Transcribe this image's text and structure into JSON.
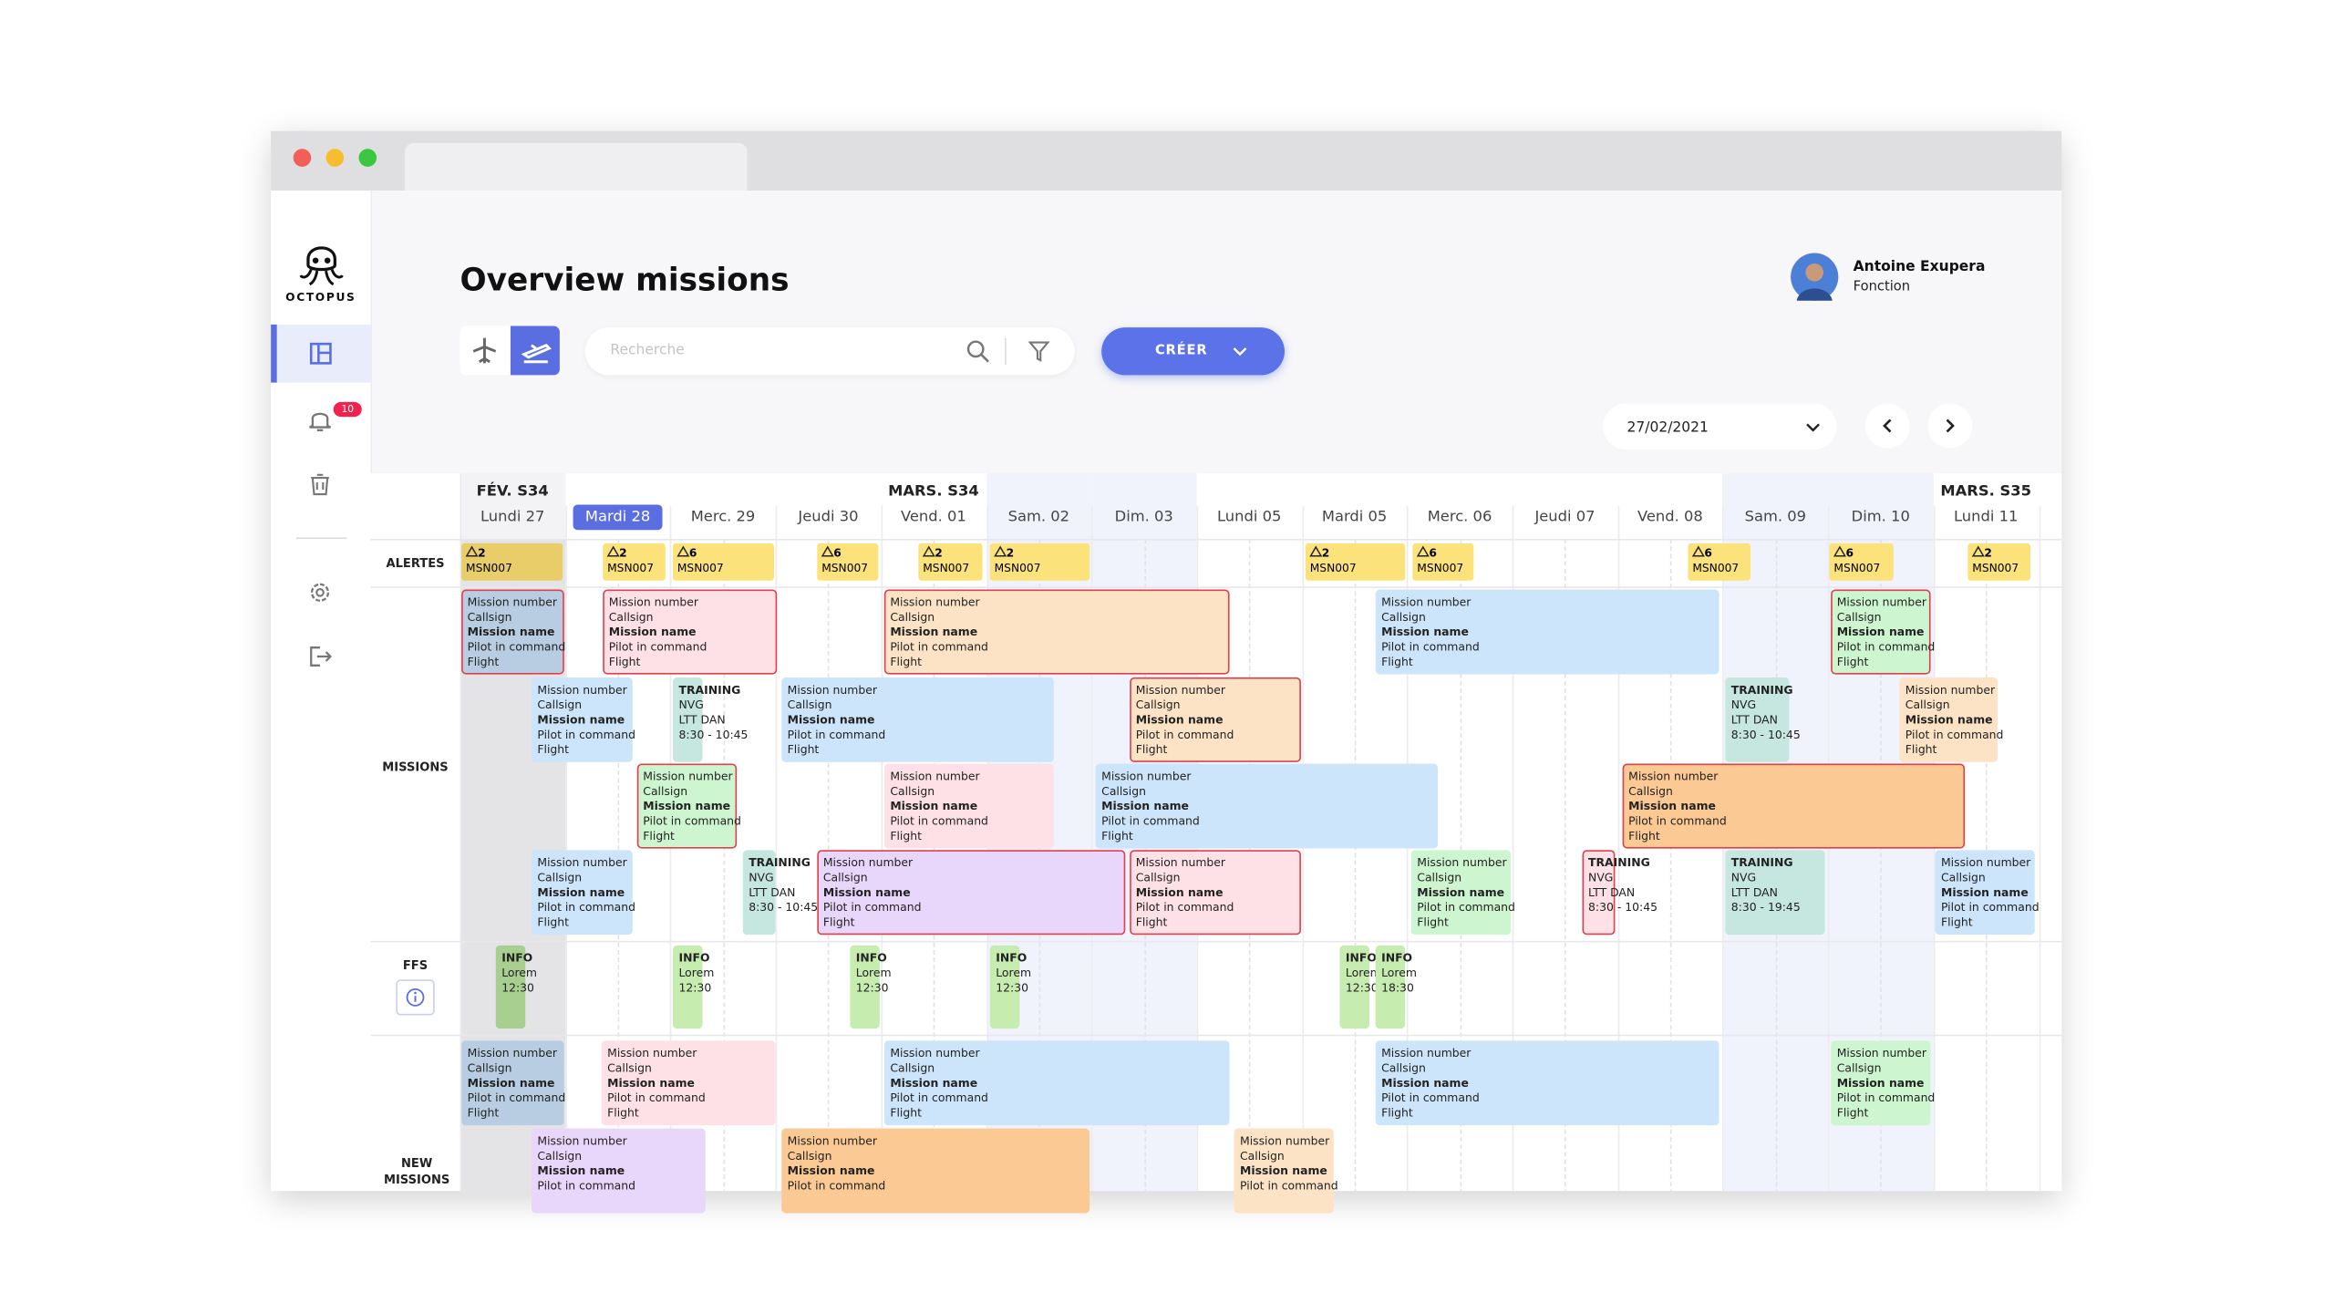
{
  "sidebar": {
    "logo": "OCTOPUS",
    "badge": 10
  },
  "header": {
    "title": "Overview missions",
    "search_placeholder": "Recherche",
    "create_button": "CRÉER",
    "user_name": "Antoine Exupera",
    "user_role": "Fonction",
    "date": "27/02/2021"
  },
  "timeline": {
    "weeks": [
      "FÉV. S34",
      "MARS. S34",
      "MARS. S35"
    ],
    "days": [
      "Lundi 27",
      "Mardi 28",
      "Merc. 29",
      "Jeudi 30",
      "Vend. 01",
      "Sam. 02",
      "Dim. 03",
      "Lundi 05",
      "Mardi 05",
      "Merc. 06",
      "Jeudi 07",
      "Vend. 08",
      "Sam. 09",
      "Dim. 10",
      "Lundi 11"
    ],
    "row_labels": {
      "alerts": "ALERTES",
      "missions": "MISSIONS",
      "ffs": "FFS",
      "new_missions": "NEW MISSIONS"
    },
    "alerts": [
      {
        "count": 2,
        "code": "MSN007"
      },
      {
        "count": 2,
        "code": "MSN007"
      },
      {
        "count": 6,
        "code": "MSN007"
      },
      {
        "count": 6,
        "code": "MSN007"
      },
      {
        "count": 2,
        "code": "MSN007"
      },
      {
        "count": 2,
        "code": "MSN007"
      },
      {
        "count": 2,
        "code": "MSN007"
      },
      {
        "count": 6,
        "code": "MSN007"
      },
      {
        "count": 6,
        "code": "MSN007"
      },
      {
        "count": 6,
        "code": "MSN007"
      },
      {
        "count": 2,
        "code": "MSN007"
      }
    ],
    "missions": [
      [
        "Mission number",
        "Callsign",
        "Mission name",
        "Pilot in command",
        "Flight"
      ],
      [
        "Mission number",
        "Callsign",
        "Mission name",
        "Pilot in command",
        "Flight"
      ],
      [
        "Mission number",
        "Callsign",
        "Mission name",
        "Pilot in command",
        "Flight"
      ],
      [
        "Mission number",
        "Callsign",
        "Mission name",
        "Pilot in command",
        "Flight"
      ],
      [
        "Mission number",
        "Callsign",
        "Mission name",
        "Pilot in command",
        "Flight"
      ],
      [
        "Mission number",
        "Callsign",
        "Mission name",
        "Pilot in command",
        "Flight"
      ],
      [
        "TRAINING",
        "NVG",
        "LTT DAN",
        "8:30 - 10:45"
      ],
      [
        "Mission number",
        "Callsign",
        "Mission name",
        "Pilot in command",
        "Flight"
      ],
      [
        "Mission number",
        "Callsign",
        "Mission name",
        "Pilot in command",
        "Flight"
      ],
      [
        "TRAINING",
        "NVG",
        "LTT DAN",
        "8:30 - 10:45"
      ],
      [
        "Mission number",
        "Callsign",
        "Mission name",
        "Pilot in command",
        "Flight"
      ],
      [
        "Mission number",
        "Callsign",
        "Mission name",
        "Pilot in command",
        "Flight"
      ],
      [
        "Mission number",
        "Callsign",
        "Mission name",
        "Pilot in command",
        "Flight"
      ],
      [
        "Mission number",
        "Callsign",
        "Mission name",
        "Pilot in command",
        "Flight"
      ],
      [
        "Mission number",
        "Callsign",
        "Mission name",
        "Pilot in command",
        "Flight"
      ],
      [
        "Mission number",
        "Callsign",
        "Mission name",
        "Pilot in command",
        "Flight"
      ],
      [
        "TRAINING",
        "NVG",
        "LTT DAN",
        "8:30 - 10:45"
      ],
      [
        "Mission number",
        "Callsign",
        "Mission name",
        "Pilot in command",
        "Flight"
      ],
      [
        "Mission number",
        "Callsign",
        "Mission name",
        "Pilot in command",
        "Flight"
      ],
      [
        "Mission number",
        "Callsign",
        "Mission name",
        "Pilot in command",
        "Flight"
      ],
      [
        "TRAINING",
        "NVG",
        "LTT DAN",
        "8:30 - 10:45"
      ],
      [
        "TRAINING",
        "NVG",
        "LTT DAN",
        "8:30 - 19:45"
      ],
      [
        "Mission number",
        "Callsign",
        "Mission name",
        "Pilot in command",
        "Flight"
      ]
    ],
    "ffs": [
      [
        "INFO",
        "Lorem",
        "12:30"
      ],
      [
        "INFO",
        "Lorem",
        "12:30"
      ],
      [
        "INFO",
        "Lorem",
        "12:30"
      ],
      [
        "INFO",
        "Lorem",
        "12:30"
      ],
      [
        "INFO",
        "Lorem",
        "12:30"
      ],
      [
        "INFO",
        "Lorem",
        "18:30"
      ]
    ],
    "new_missions": [
      [
        "Mission number",
        "Callsign",
        "Mission name",
        "Pilot in command",
        "Flight"
      ],
      [
        "Mission number",
        "Callsign",
        "Mission name",
        "Pilot in command",
        "Flight"
      ],
      [
        "Mission number",
        "Callsign",
        "Mission name",
        "Pilot in command",
        "Flight"
      ],
      [
        "Mission number",
        "Callsign",
        "Mission name",
        "Pilot in command",
        "Flight"
      ],
      [
        "Mission number",
        "Callsign",
        "Mission name",
        "Pilot in command",
        "Flight"
      ],
      [
        "Mission number",
        "Callsign",
        "Mission name",
        "Pilot in command"
      ],
      [
        "Mission number",
        "Callsign",
        "Mission name",
        "Pilot in command"
      ],
      [
        "Mission number",
        "Callsign",
        "Mission name",
        "Pilot in command"
      ]
    ]
  }
}
